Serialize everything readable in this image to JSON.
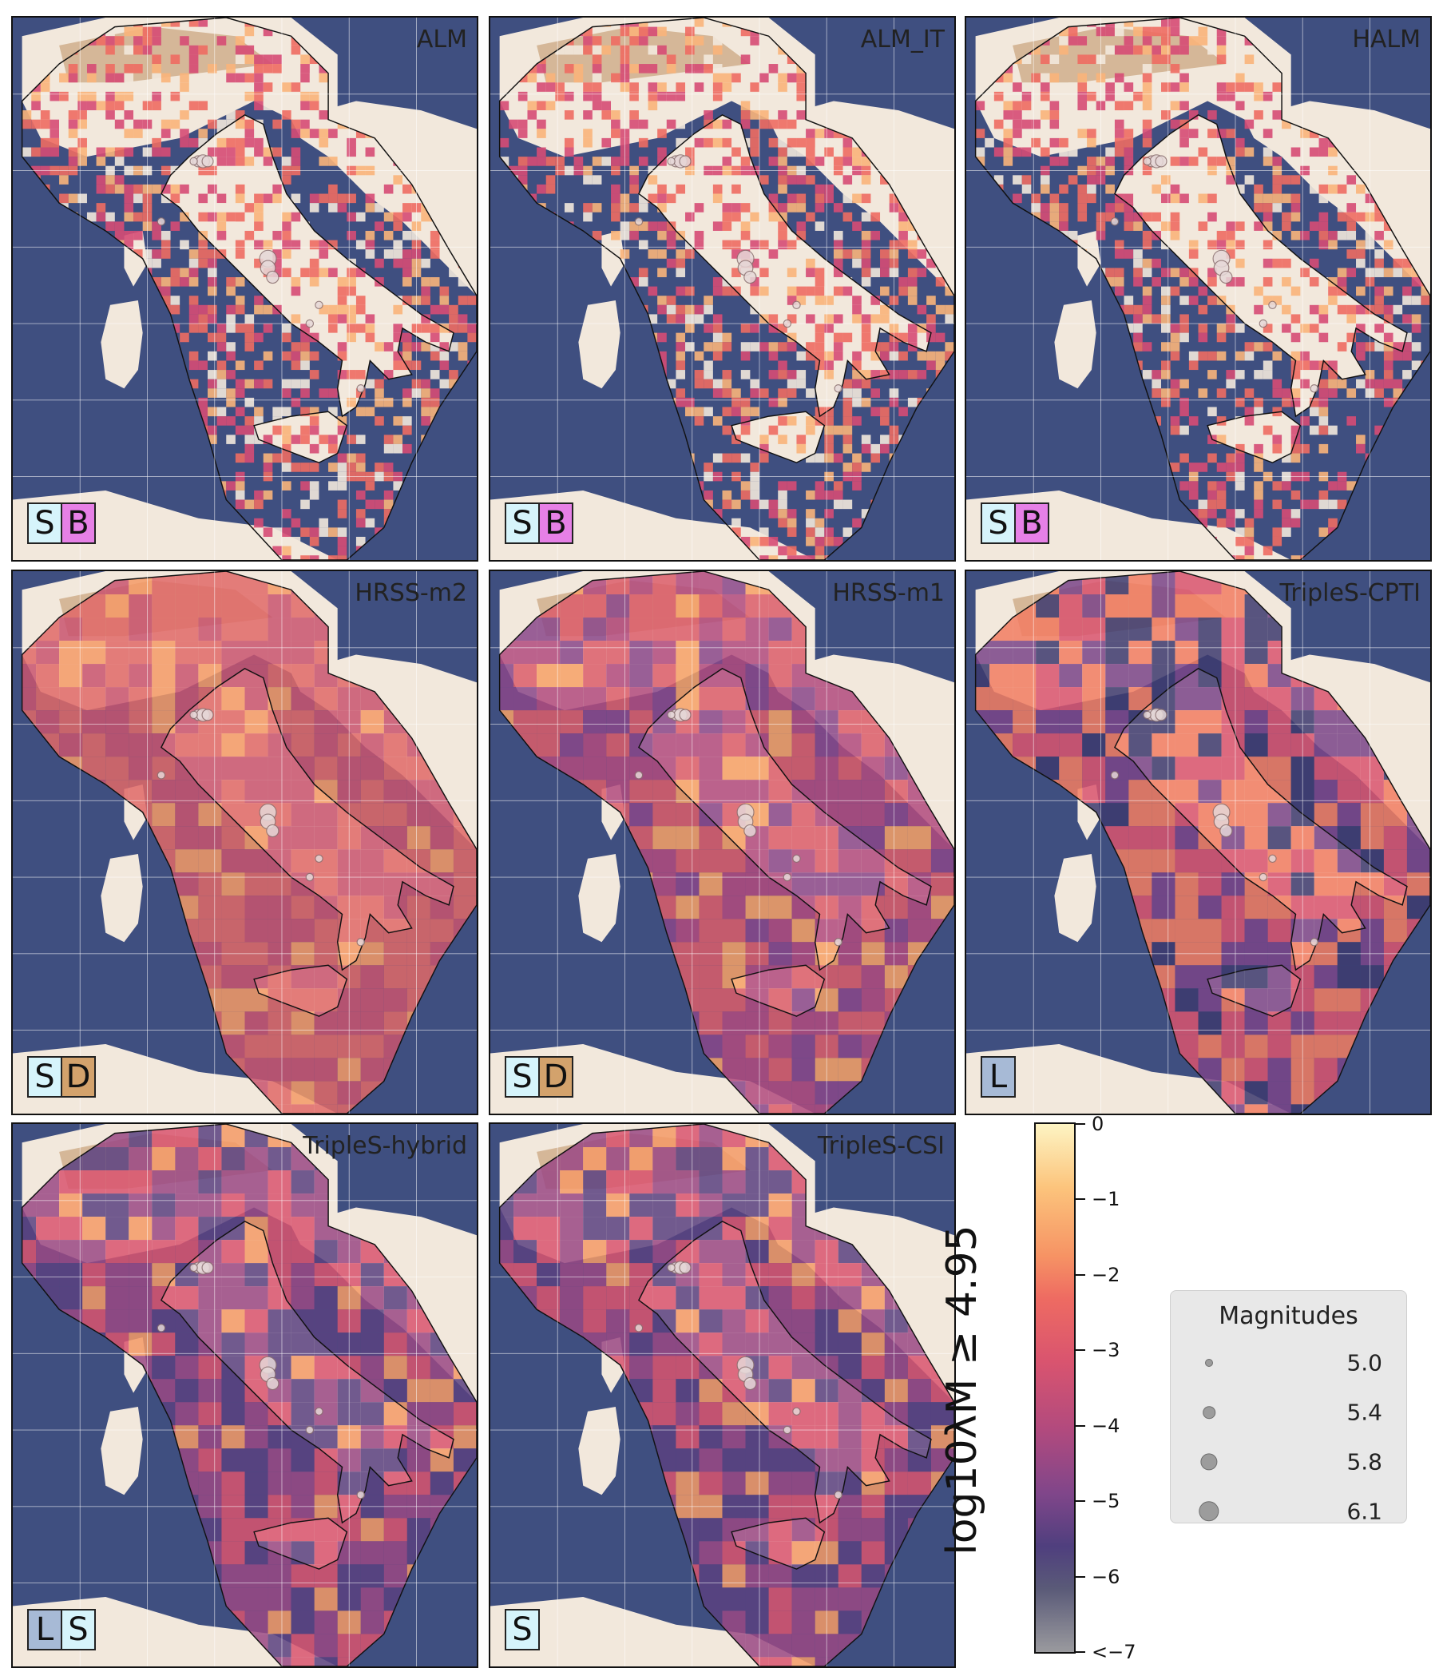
{
  "colors": {
    "sea": "#3f4f80",
    "land": "#f2e8dc",
    "alps": "#c9a27a",
    "badge_S": "#d6f4fb",
    "badge_B": "#e680e6",
    "badge_D": "#d3a26c",
    "badge_L": "#a7bad6",
    "rate_high": "#fdf4c3",
    "rate_mid": "#ee6b62",
    "rate_low": "#4f3f7e",
    "rate_min": "#9a9a9e"
  },
  "panels": [
    {
      "id": "alm",
      "title": "ALM",
      "badges": [
        "S",
        "B"
      ],
      "style": "grid_cells"
    },
    {
      "id": "alm-it",
      "title": "ALM_IT",
      "badges": [
        "S",
        "B"
      ],
      "style": "grid_cells"
    },
    {
      "id": "halm",
      "title": "HALM",
      "badges": [
        "S",
        "B"
      ],
      "style": "grid_cells"
    },
    {
      "id": "hrss-m2",
      "title": "HRSS-m2",
      "badges": [
        "S",
        "D"
      ],
      "style": "smooth_high"
    },
    {
      "id": "hrss-m1",
      "title": "HRSS-m1",
      "badges": [
        "S",
        "D"
      ],
      "style": "smooth_mid"
    },
    {
      "id": "triples-cpti",
      "title": "TripleS-CPTI",
      "badges": [
        "L"
      ],
      "style": "blobs"
    },
    {
      "id": "triples-hybrid",
      "title": "TripleS-hybrid",
      "badges": [
        "L",
        "S"
      ],
      "style": "smooth_low"
    },
    {
      "id": "triples-csi",
      "title": "TripleS-CSI",
      "badges": [
        "S"
      ],
      "style": "smooth_low"
    }
  ],
  "colorbar": {
    "title": "log₁₀λ_{M ≥ 4.95}",
    "title_display": "log10λM ≥ 4.95",
    "range": [
      -7,
      0
    ],
    "ticks": [
      "0",
      "−1",
      "−2",
      "−3",
      "−4",
      "−5",
      "−6",
      "<−7"
    ],
    "tick_values": [
      0,
      -1,
      -2,
      -3,
      -4,
      -5,
      -6,
      -7
    ]
  },
  "legend": {
    "title": "Magnitudes",
    "items": [
      {
        "label": "5.0",
        "magnitude": 5.0
      },
      {
        "label": "5.4",
        "magnitude": 5.4
      },
      {
        "label": "5.8",
        "magnitude": 5.8
      },
      {
        "label": "6.1",
        "magnitude": 6.1
      }
    ]
  }
}
